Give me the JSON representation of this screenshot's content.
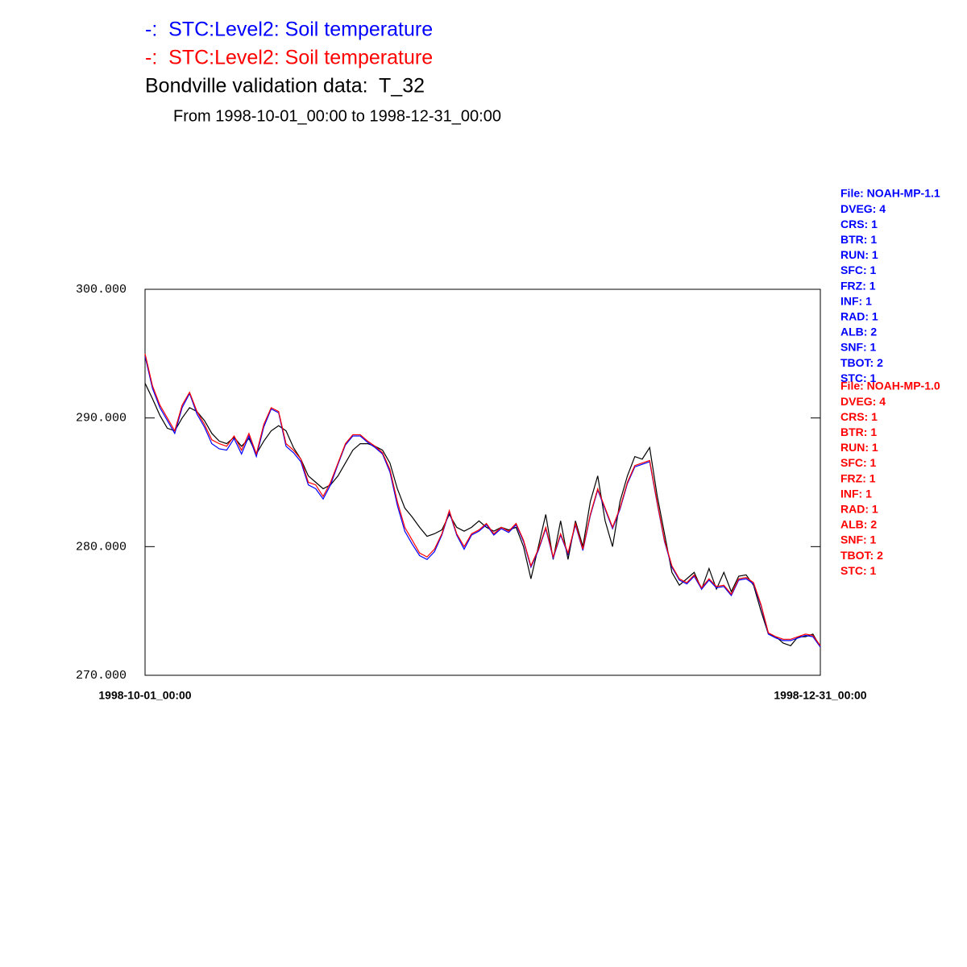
{
  "chart_data": {
    "type": "line",
    "subtitle": "From 1998-10-01_00:00 to 1998-12-31_00:00",
    "categories": [
      "1998-10-01_00:00",
      null,
      null,
      null,
      null,
      null,
      null,
      null,
      null,
      null,
      null,
      null,
      null,
      null,
      null,
      null,
      null,
      null,
      null,
      null,
      null,
      null,
      null,
      null,
      null,
      null,
      null,
      null,
      null,
      null,
      null,
      null,
      null,
      null,
      null,
      null,
      null,
      null,
      null,
      null,
      null,
      null,
      null,
      null,
      null,
      null,
      null,
      null,
      null,
      null,
      null,
      null,
      null,
      null,
      null,
      null,
      null,
      null,
      null,
      null,
      null,
      null,
      null,
      null,
      null,
      null,
      null,
      null,
      null,
      null,
      null,
      null,
      null,
      null,
      null,
      null,
      null,
      null,
      null,
      null,
      null,
      null,
      null,
      null,
      null,
      null,
      null,
      null,
      null,
      null,
      null,
      "1998-12-31_00:00"
    ],
    "ylim": [
      270,
      300
    ],
    "yticks": [
      {
        "value": 270,
        "label": "270.000"
      },
      {
        "value": 280,
        "label": "280.000"
      },
      {
        "value": 290,
        "label": "290.000"
      },
      {
        "value": 300,
        "label": "300.000"
      }
    ],
    "series": [
      {
        "name": "-:  STC:Level2: Soil temperature",
        "color": "#0000ff",
        "values": [
          294.8,
          292.3,
          290.8,
          289.8,
          288.8,
          290.8,
          291.9,
          290.3,
          289.3,
          288.0,
          287.6,
          287.5,
          288.4,
          287.2,
          288.6,
          287.0,
          289.3,
          290.7,
          290.4,
          287.8,
          287.3,
          286.6,
          284.8,
          284.5,
          283.7,
          284.8,
          286.4,
          287.9,
          288.6,
          288.6,
          288.1,
          287.7,
          287.2,
          285.8,
          283.2,
          281.2,
          280.2,
          279.3,
          279.0,
          279.6,
          280.9,
          282.7,
          280.9,
          279.8,
          280.9,
          281.2,
          281.7,
          280.9,
          281.4,
          281.1,
          281.7,
          280.4,
          278.4,
          279.7,
          281.4,
          279.1,
          280.9,
          279.4,
          281.7,
          279.7,
          282.4,
          284.4,
          282.9,
          281.4,
          282.9,
          284.9,
          286.2,
          286.4,
          286.6,
          283.4,
          280.4,
          278.4,
          277.4,
          277.1,
          277.7,
          276.7,
          277.4,
          276.8,
          276.9,
          276.2,
          277.4,
          277.5,
          277.1,
          275.4,
          273.2,
          272.9,
          272.7,
          272.7,
          272.9,
          273.1,
          273.0,
          272.2
        ]
      },
      {
        "name": "-:  STC:Level2: Soil temperature",
        "color": "#ff0000",
        "values": [
          295.0,
          292.5,
          291.0,
          290.0,
          289.0,
          291.0,
          292.0,
          290.5,
          289.5,
          288.3,
          288.0,
          287.8,
          288.6,
          287.5,
          288.8,
          287.2,
          289.5,
          290.8,
          290.5,
          288.0,
          287.5,
          286.8,
          285.0,
          284.8,
          283.9,
          285.0,
          286.5,
          288.0,
          288.7,
          288.7,
          288.2,
          287.8,
          287.3,
          286.0,
          283.5,
          281.5,
          280.5,
          279.5,
          279.2,
          279.8,
          281.0,
          282.8,
          281.0,
          280.0,
          281.0,
          281.3,
          281.8,
          281.0,
          281.5,
          281.2,
          281.8,
          280.5,
          278.5,
          279.8,
          281.5,
          279.2,
          281.0,
          279.5,
          281.8,
          279.8,
          282.5,
          284.5,
          283.0,
          281.5,
          283.0,
          285.0,
          286.3,
          286.5,
          286.7,
          283.5,
          280.5,
          278.5,
          277.5,
          277.2,
          277.8,
          276.8,
          277.5,
          276.9,
          277.0,
          276.3,
          277.5,
          277.6,
          277.2,
          275.5,
          273.3,
          273.0,
          272.8,
          272.8,
          273.0,
          273.2,
          273.1,
          272.3
        ]
      },
      {
        "name": "Bondville validation data:  T_32",
        "color": "#000000",
        "values": [
          292.7,
          291.5,
          290.2,
          289.2,
          289.0,
          290.0,
          290.8,
          290.5,
          289.8,
          288.8,
          288.2,
          288.0,
          288.5,
          287.8,
          288.4,
          287.2,
          288.2,
          289.0,
          289.4,
          289.0,
          287.7,
          286.8,
          285.5,
          285.0,
          284.5,
          284.8,
          285.5,
          286.5,
          287.5,
          288.0,
          288.0,
          287.8,
          287.5,
          286.5,
          284.5,
          283.0,
          282.3,
          281.5,
          280.8,
          281.0,
          281.3,
          282.5,
          281.5,
          281.2,
          281.5,
          282.0,
          281.5,
          281.2,
          281.5,
          281.3,
          281.5,
          280.0,
          277.5,
          280.0,
          282.5,
          279.0,
          282.0,
          279.0,
          282.0,
          280.0,
          283.5,
          285.5,
          282.0,
          280.0,
          283.5,
          285.5,
          287.0,
          286.8,
          287.7,
          284.0,
          281.0,
          278.0,
          277.0,
          277.5,
          278.0,
          276.7,
          278.3,
          276.7,
          278.0,
          276.5,
          277.7,
          277.8,
          277.0,
          275.0,
          273.2,
          273.0,
          272.5,
          272.3,
          273.0,
          273.0,
          273.2,
          272.2
        ]
      }
    ],
    "annotations": [
      {
        "color": "#0000ff",
        "lines": [
          "File: NOAH-MP-1.1",
          "DVEG: 4",
          "CRS: 1",
          "BTR: 1",
          "RUN: 1",
          "SFC: 1",
          "FRZ: 1",
          "INF: 1",
          "RAD: 1",
          "ALB: 2",
          "SNF: 1",
          "TBOT: 2",
          "STC: 1"
        ]
      },
      {
        "color": "#ff0000",
        "lines": [
          "File: NOAH-MP-1.0",
          "DVEG: 4",
          "CRS: 1",
          "BTR: 1",
          "RUN: 1",
          "SFC: 1",
          "FRZ: 1",
          "INF: 1",
          "RAD: 1",
          "ALB: 2",
          "SNF: 1",
          "TBOT: 2",
          "STC: 1"
        ]
      }
    ]
  }
}
